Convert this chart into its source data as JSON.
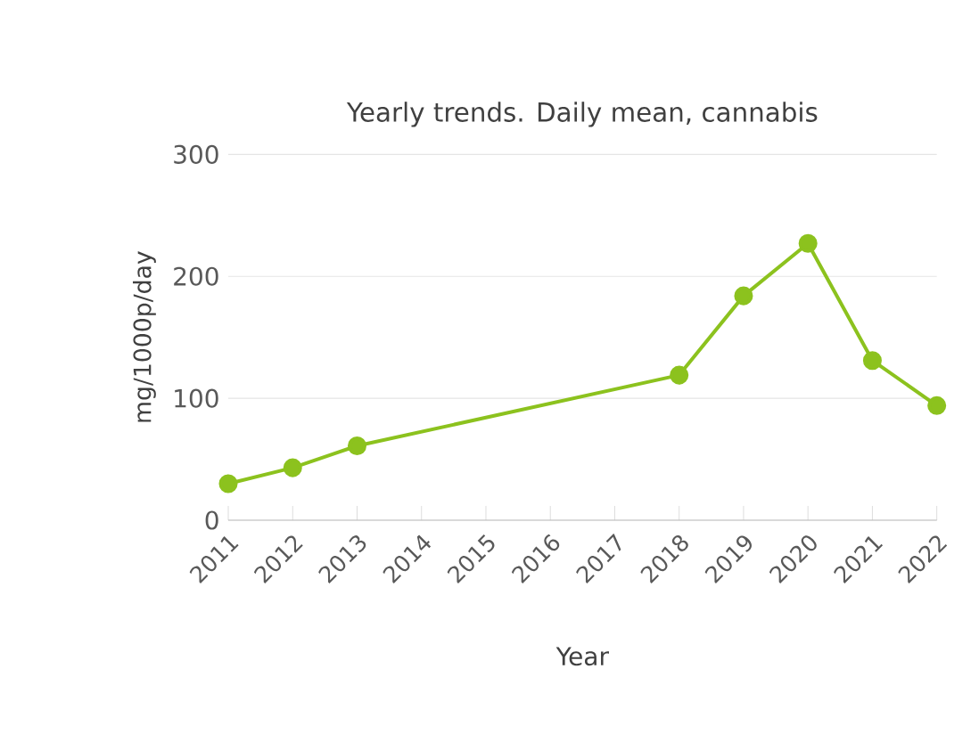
{
  "chart_data": {
    "type": "line",
    "title": "Yearly trends. Daily mean, cannabis",
    "xlabel": "Year",
    "ylabel": "mg/1000p/day",
    "x": [
      2011,
      2012,
      2013,
      2018,
      2019,
      2020,
      2021,
      2022
    ],
    "series": [
      {
        "color": "#8cc21e",
        "values": [
          30,
          43,
          61,
          119,
          184,
          227,
          131,
          94
        ]
      }
    ],
    "xlim": [
      2011,
      2022
    ],
    "xticks": [
      2011,
      2012,
      2013,
      2014,
      2015,
      2016,
      2017,
      2018,
      2019,
      2020,
      2021,
      2022
    ],
    "ylim": [
      0,
      300
    ],
    "yticks": [
      0,
      100,
      200,
      300
    ],
    "grid": "y",
    "marker": "circle",
    "line_style": "solid"
  }
}
